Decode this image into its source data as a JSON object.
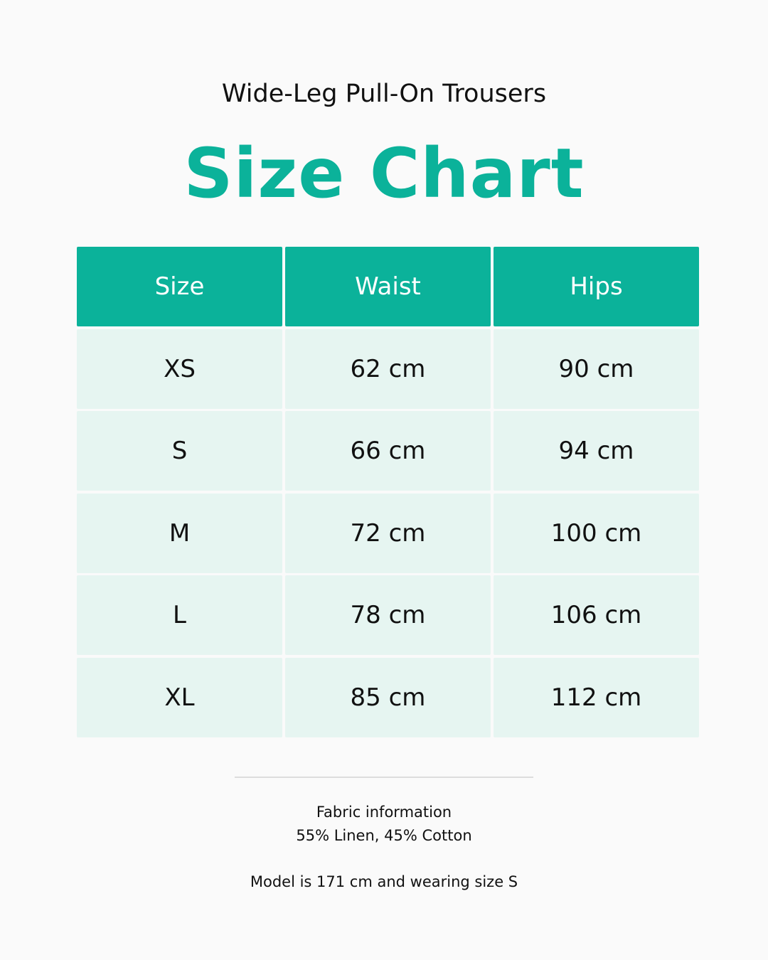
{
  "product_name": "Wide-Leg Pull-On Trousers",
  "title": "Size Chart",
  "colors": {
    "accent": "#0bb29a",
    "row_background": "#e6f5f1"
  },
  "table": {
    "headers": [
      "Size",
      "Waist",
      "Hips"
    ],
    "rows": [
      [
        "XS",
        "62 cm",
        "90 cm"
      ],
      [
        "S",
        "66 cm",
        "94 cm"
      ],
      [
        "M",
        "72 cm",
        "100 cm"
      ],
      [
        "L",
        "78 cm",
        "106 cm"
      ],
      [
        "XL",
        "85 cm",
        "112 cm"
      ]
    ]
  },
  "footer": {
    "fabric_label": "Fabric information",
    "fabric_value": "55% Linen, 45% Cotton",
    "model_note": "Model is 171 cm and wearing size S"
  }
}
